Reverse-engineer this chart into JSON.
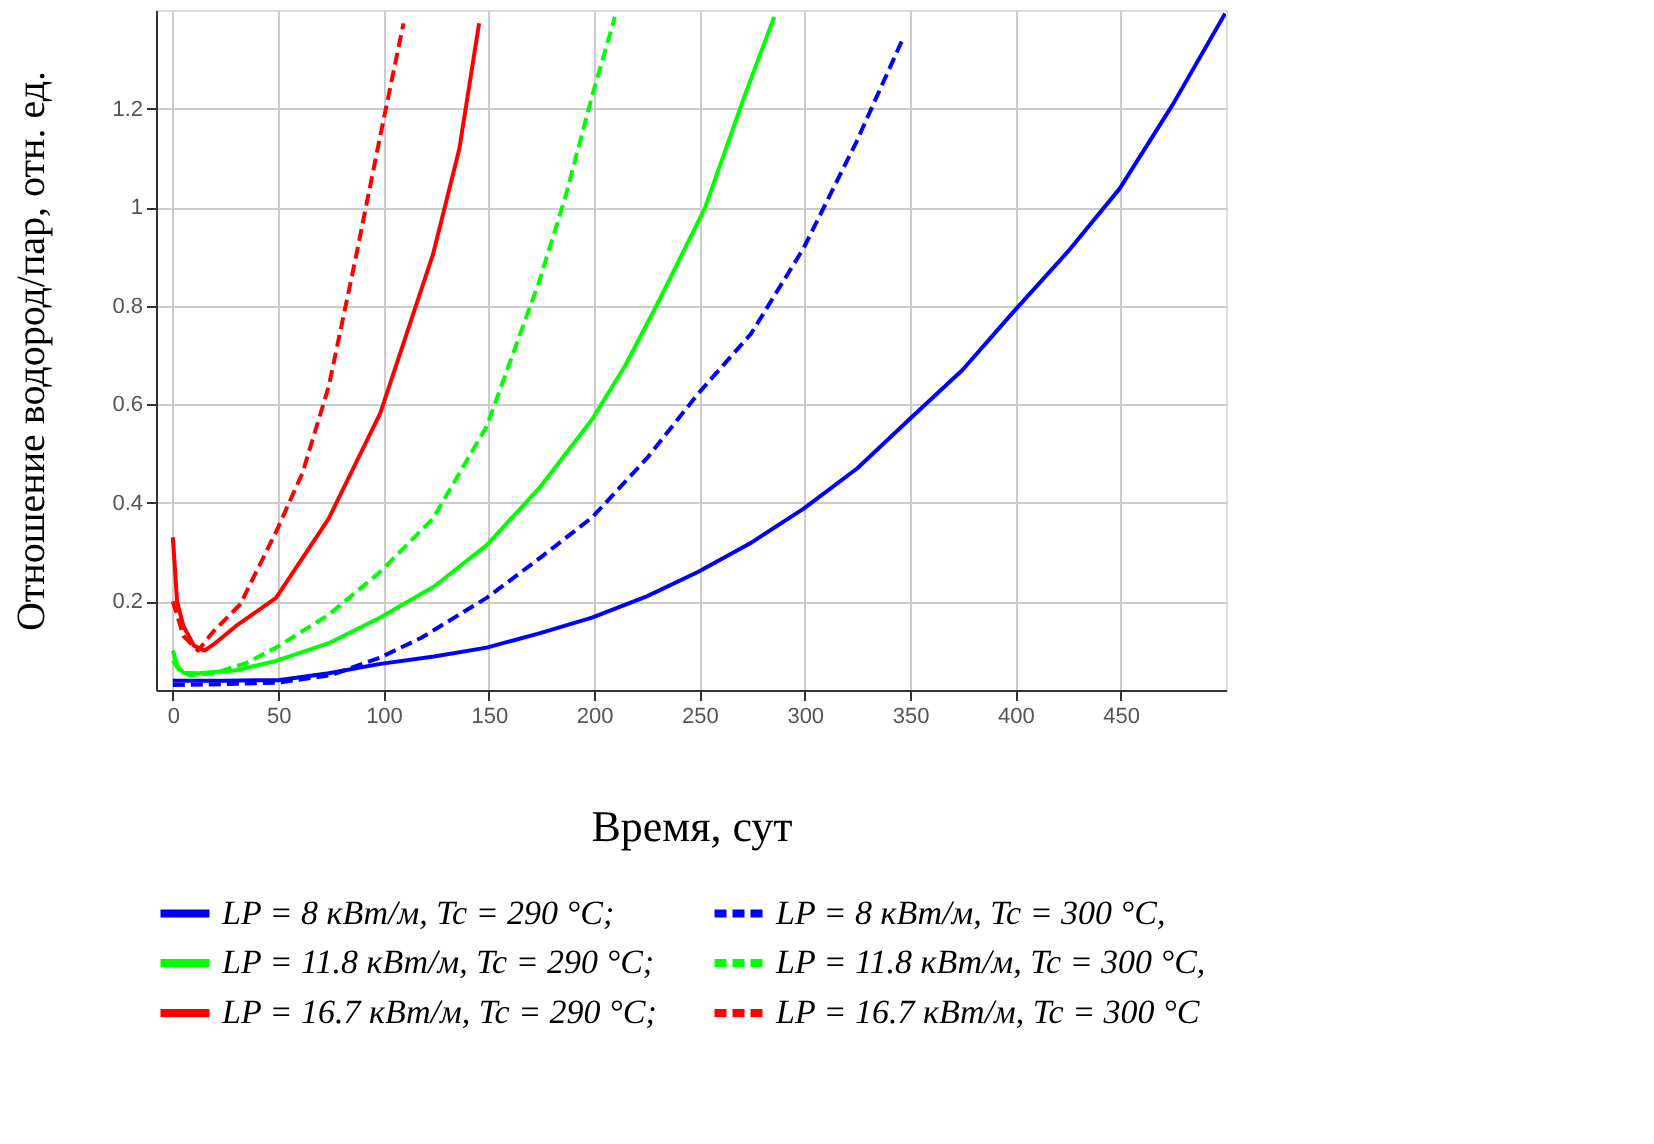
{
  "chart_data": {
    "type": "line",
    "xlabel": "Время, сут",
    "ylabel": "Отношение водород/пар, отн. ед.",
    "xlim": [
      -8,
      500
    ],
    "xticks": [
      0,
      50,
      100,
      150,
      200,
      250,
      300,
      350,
      400,
      450
    ],
    "ylim": [
      0.02,
      1.4
    ],
    "yticks": [
      0.2,
      0.4,
      0.6,
      0.8,
      1,
      1.2
    ],
    "grid": true,
    "legend": "bottom",
    "marker": "none",
    "series": [
      {
        "name": "LP = 8 кВт/м, Tc = 290 °C;",
        "color": "#0000ff",
        "line_style": "solid",
        "x": [
          0,
          25,
          50,
          74,
          98.5,
          124,
          149,
          174,
          199,
          225,
          249.5,
          275,
          299.5,
          325,
          349.6,
          375,
          399.6,
          425,
          449.6,
          475,
          499.6
        ],
        "values": [
          0.039,
          0.039,
          0.04,
          0.054,
          0.073,
          0.088,
          0.106,
          0.135,
          0.167,
          0.21,
          0.26,
          0.32,
          0.388,
          0.47,
          0.569,
          0.67,
          0.79,
          0.91,
          1.038,
          1.21,
          1.393
        ]
      },
      {
        "name": "LP = 8 кВт/м, Tc = 300 °C,",
        "color": "#0000ff",
        "line_style": "dashed",
        "x": [
          0,
          25,
          50,
          75,
          98.5,
          118,
          149,
          174,
          199,
          225,
          249.5,
          274.5,
          299.5,
          324.5,
          346.4
        ],
        "values": [
          0.03,
          0.032,
          0.035,
          0.05,
          0.086,
          0.126,
          0.207,
          0.287,
          0.37,
          0.49,
          0.622,
          0.743,
          0.917,
          1.132,
          1.34
        ]
      },
      {
        "name": "LP = 11.8 кВт/м, Tc = 290 °C;",
        "color": "#00ff00",
        "line_style": "solid",
        "x": [
          0,
          2,
          5,
          12,
          30,
          49,
          74,
          98.5,
          124,
          149,
          174,
          199,
          215,
          230.8,
          252.6,
          271.4,
          285.5
        ],
        "values": [
          0.1,
          0.07,
          0.055,
          0.054,
          0.06,
          0.079,
          0.115,
          0.167,
          0.23,
          0.314,
          0.43,
          0.569,
          0.68,
          0.81,
          0.998,
          1.225,
          1.386
        ]
      },
      {
        "name": "LP = 11.8 кВт/м, Tc = 300 °C,",
        "color": "#00ff00",
        "line_style": "dashed",
        "x": [
          0,
          3,
          8,
          19.5,
          35,
          49,
          74,
          98.5,
          123.5,
          149,
          174,
          186.6,
          199,
          209.9
        ],
        "values": [
          0.08,
          0.06,
          0.05,
          0.054,
          0.075,
          0.106,
          0.173,
          0.26,
          0.368,
          0.555,
          0.85,
          1.024,
          1.225,
          1.386
        ]
      },
      {
        "name": "LP = 16.7 кВт/м, Tc = 290 °C;",
        "color": "#ff0000",
        "line_style": "solid",
        "x": [
          0,
          2,
          5,
          10,
          15,
          19.5,
          30,
          49,
          74,
          98.5,
          123.5,
          136,
          145.4
        ],
        "values": [
          0.33,
          0.2,
          0.15,
          0.11,
          0.1,
          0.113,
          0.15,
          0.207,
          0.368,
          0.582,
          0.904,
          1.118,
          1.373
        ]
      },
      {
        "name": "LP = 16.7 кВт/м, Tc = 300 °C",
        "color": "#ff0000",
        "line_style": "dashed",
        "x": [
          0,
          5,
          12,
          19.5,
          32,
          49,
          61.6,
          74,
          86.5,
          98.5,
          109.5
        ],
        "values": [
          0.2,
          0.13,
          0.1,
          0.14,
          0.194,
          0.341,
          0.461,
          0.636,
          0.89,
          1.145,
          1.373
        ]
      }
    ]
  }
}
